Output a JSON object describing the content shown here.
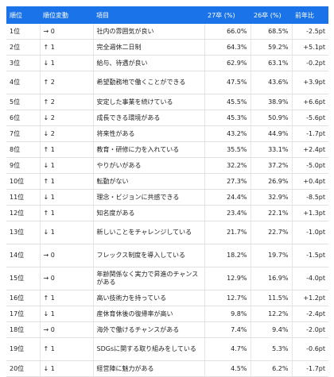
{
  "table": {
    "headers": [
      "順位",
      "順位変動",
      "項目",
      "27卒 (%)",
      "26卒 (%)",
      "前年比"
    ],
    "rows": [
      [
        "1位",
        "→ 0",
        "社内の雰囲気が良い",
        "66.0%",
        "68.5%",
        "-2.5pt"
      ],
      [
        "2位",
        "↑ 1",
        "完全週休二日制",
        "64.3%",
        "59.2%",
        "+5.1pt"
      ],
      [
        "3位",
        "↓ 1",
        "給与、待遇が良い",
        "62.9%",
        "63.1%",
        "-0.2pt"
      ],
      [
        "4位",
        "↑ 2",
        "希望勤務地で働くことができる",
        "47.5%",
        "43.6%",
        "+3.9pt"
      ],
      [
        "5位",
        "↑ 2",
        "安定した事業を続けている",
        "45.5%",
        "38.9%",
        "+6.6pt"
      ],
      [
        "6位",
        "↓ 2",
        "成長できる環境がある",
        "45.3%",
        "50.9%",
        "-5.6pt"
      ],
      [
        "7位",
        "↓ 2",
        "将来性がある",
        "43.2%",
        "44.9%",
        "-1.7pt"
      ],
      [
        "8位",
        "↑ 1",
        "教育・研修に力を入れている",
        "35.5%",
        "33.1%",
        "+2.4pt"
      ],
      [
        "9位",
        "↓ 1",
        "やりがいがある",
        "32.2%",
        "37.2%",
        "-5.0pt"
      ],
      [
        "10位",
        "↑ 1",
        "転勤がない",
        "27.3%",
        "26.9%",
        "+0.4pt"
      ],
      [
        "11位",
        "↓ 1",
        "理念・ビジョンに共感できる",
        "24.4%",
        "32.9%",
        "-8.5pt"
      ],
      [
        "12位",
        "↑ 1",
        "知名度がある",
        "23.4%",
        "22.1%",
        "+1.3pt"
      ],
      [
        "13位",
        "↓ 1",
        "新しいことをチャレンジしている",
        "21.7%",
        "22.7%",
        "-1.0pt"
      ],
      [
        "14位",
        "→ 0",
        "フレックス制度を導入している",
        "18.2%",
        "19.7%",
        "-1.5pt"
      ],
      [
        "15位",
        "→ 0",
        "年齢関係なく実力で昇進のチャンスがある",
        "12.9%",
        "16.9%",
        "-4.0pt"
      ],
      [
        "16位",
        "↑ 1",
        "高い技術力を持っている",
        "12.7%",
        "11.5%",
        "+1.2pt"
      ],
      [
        "17位",
        "↓ 1",
        "産休育休後の復帰率が高い",
        "9.8%",
        "12.2%",
        "-2.4pt"
      ],
      [
        "18位",
        "→ 0",
        "海外で働けるチャンスがある",
        "7.4%",
        "9.4%",
        "-2.0pt"
      ],
      [
        "19位",
        "↑ 1",
        "SDGsに関する取り組みをしている",
        "4.7%",
        "5.3%",
        "-0.6pt"
      ],
      [
        "20位",
        "↓ 1",
        "経営陣に魅力がある",
        "4.5%",
        "6.2%",
        "-1.7pt"
      ]
    ]
  }
}
